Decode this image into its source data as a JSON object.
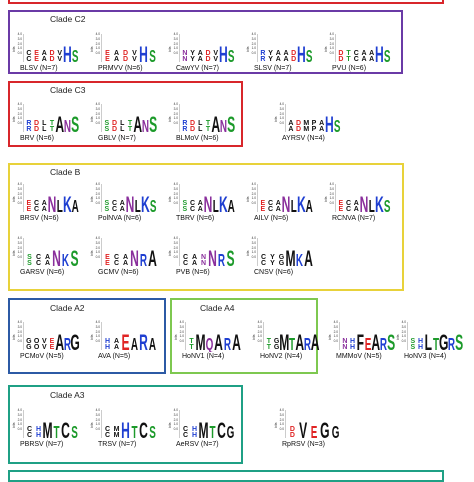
{
  "colors": {
    "red": "#d8262b",
    "purple": "#6a3aa6",
    "yellow": "#e8d23a",
    "blue": "#2c5aa5",
    "green": "#7ec850",
    "teal": "#1fa085",
    "logo_blue": "#1f3fd1",
    "logo_red": "#e02424",
    "logo_green": "#1c9a2a",
    "logo_purple": "#8a2f9c",
    "logo_black": "#111111"
  },
  "axis": {
    "bits_label": "bits",
    "ticks": [
      "4.0",
      "3.0",
      "2.0",
      "1.0",
      "0.0"
    ]
  },
  "clades": [
    {
      "title": "Clade C2",
      "items": [
        {
          "caption": "BLSV (N=7)",
          "letters": "HS",
          "small": "CEADV"
        },
        {
          "caption": "PRMVV (N=6)",
          "letters": "HS",
          "small": "EADV"
        },
        {
          "caption": "CawYV (N=7)",
          "letters": "HS",
          "small": "NYADV"
        },
        {
          "caption": "SLSV (N=7)",
          "letters": "HS",
          "small": "RYAAD"
        },
        {
          "caption": "PVU (N=6)",
          "letters": "HS",
          "small": "DTCAA"
        }
      ]
    },
    {
      "title": "Clade C3",
      "items": [
        {
          "caption": "BRV (N=6)",
          "letters": "ANS",
          "small": "RDLT"
        },
        {
          "caption": "GBLV (N=7)",
          "letters": "ANS",
          "small": "SDLT"
        },
        {
          "caption": "BLMoV (N=6)",
          "letters": "ANS",
          "small": "RDLT"
        }
      ],
      "outside": [
        {
          "caption": "AYRSV (N=4)",
          "letters": "HS",
          "small": "ADMPA"
        }
      ]
    },
    {
      "title": "Clade B",
      "items": [
        {
          "caption": "BRSV (N=6)",
          "letters": "NLKA",
          "small": "ECA"
        },
        {
          "caption": "PolNVA (N=6)",
          "letters": "NLKS",
          "small": "SCA"
        },
        {
          "caption": "TBRV (N=6)",
          "letters": "NLKA",
          "small": "SCA"
        },
        {
          "caption": "AILV (N=6)",
          "letters": "NLKA",
          "small": "ECA"
        },
        {
          "caption": "RCNVA (N=7)",
          "letters": "NLKS",
          "small": "ECA"
        },
        {
          "caption": "GARSV (N=6)",
          "letters": "NKS",
          "small": "SCA"
        },
        {
          "caption": "GCMV (N=6)",
          "letters": "NRA",
          "small": "ECA"
        },
        {
          "caption": "PVB (N=6)",
          "letters": "NRS",
          "small": "CAN"
        },
        {
          "caption": "CNSV (N=6)",
          "letters": "MKA",
          "small": "CYG"
        }
      ]
    },
    {
      "title": "Clade A2",
      "items": [
        {
          "caption": "PCMoV (N=5)",
          "letters": "ARG",
          "small": "GOVE"
        },
        {
          "caption": "AVA (N=5)",
          "letters": "EARA",
          "small": "HA"
        }
      ]
    },
    {
      "title": "Clade A4",
      "items": [
        {
          "caption": "HoNV1 (N=4)",
          "letters": "MQARA",
          "small": "T"
        },
        {
          "caption": "HoNV2 (N=4)",
          "letters": "MTARA",
          "small": "TG"
        }
      ],
      "outside": [
        {
          "caption": "MMMoV (N=5)",
          "letters": "FEARS",
          "small": "NH"
        },
        {
          "caption": "HoNV3 (N=4)",
          "letters": "LTGRS",
          "small": "SH"
        }
      ]
    },
    {
      "title": "Clade A3",
      "items": [
        {
          "caption": "PBRSV (N=7)",
          "letters": "MTCS",
          "small": "CH"
        },
        {
          "caption": "TRSV (N=7)",
          "letters": "HTCS",
          "small": "CM"
        },
        {
          "caption": "AeRSV (N=7)",
          "letters": "MTCG",
          "small": "CH"
        }
      ],
      "outside": [
        {
          "caption": "RpRSV (N=3)",
          "letters": "VEGG",
          "small": "D"
        }
      ]
    }
  ]
}
